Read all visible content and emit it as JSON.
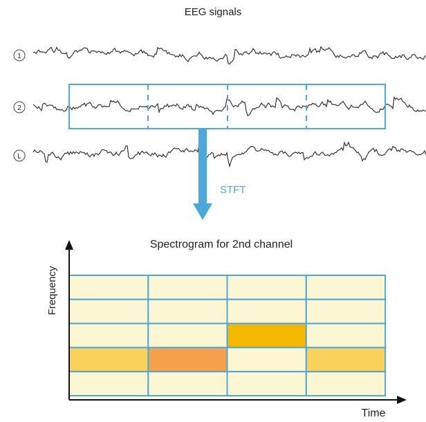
{
  "title": "EEG signals",
  "channels": [
    {
      "label": "1"
    },
    {
      "label": "2"
    },
    {
      "label": "L"
    }
  ],
  "arrow_label": "STFT",
  "spectrogram": {
    "title": "Spectrogram for 2nd channel",
    "xlabel": "Time",
    "ylabel": "Frequency",
    "cols": 4,
    "rows": 5,
    "base_color": "#fdf6d2",
    "grid_color": "#4aa8dd",
    "highlighted": [
      {
        "row": 2,
        "col": 2,
        "color": "#f5b800"
      },
      {
        "row": 3,
        "col": 0,
        "color": "#fad25a"
      },
      {
        "row": 3,
        "col": 1,
        "color": "#f5a14a"
      },
      {
        "row": 3,
        "col": 3,
        "color": "#fad25a"
      }
    ]
  },
  "colors": {
    "window_box": "#4aa8dd",
    "arrow": "#4aa8dd",
    "signal": "#333333",
    "axis": "#111111"
  }
}
